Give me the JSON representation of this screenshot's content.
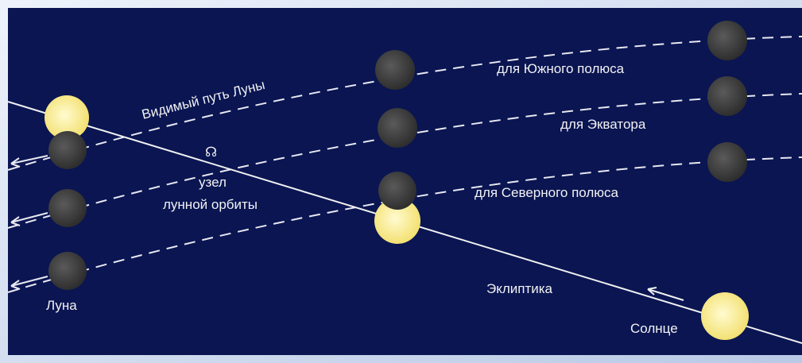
{
  "labels": {
    "apparent_path": "Видимый путь Луны",
    "south_pole": "для Южного полюса",
    "equator": "для Экватора",
    "north_pole": "для Северного полюса",
    "node_symbol": "☊",
    "node_line1": "узел",
    "node_line2": "лунной орбиты",
    "moon": "Луна",
    "ecliptic": "Эклиптика",
    "sun": "Солнце"
  }
}
